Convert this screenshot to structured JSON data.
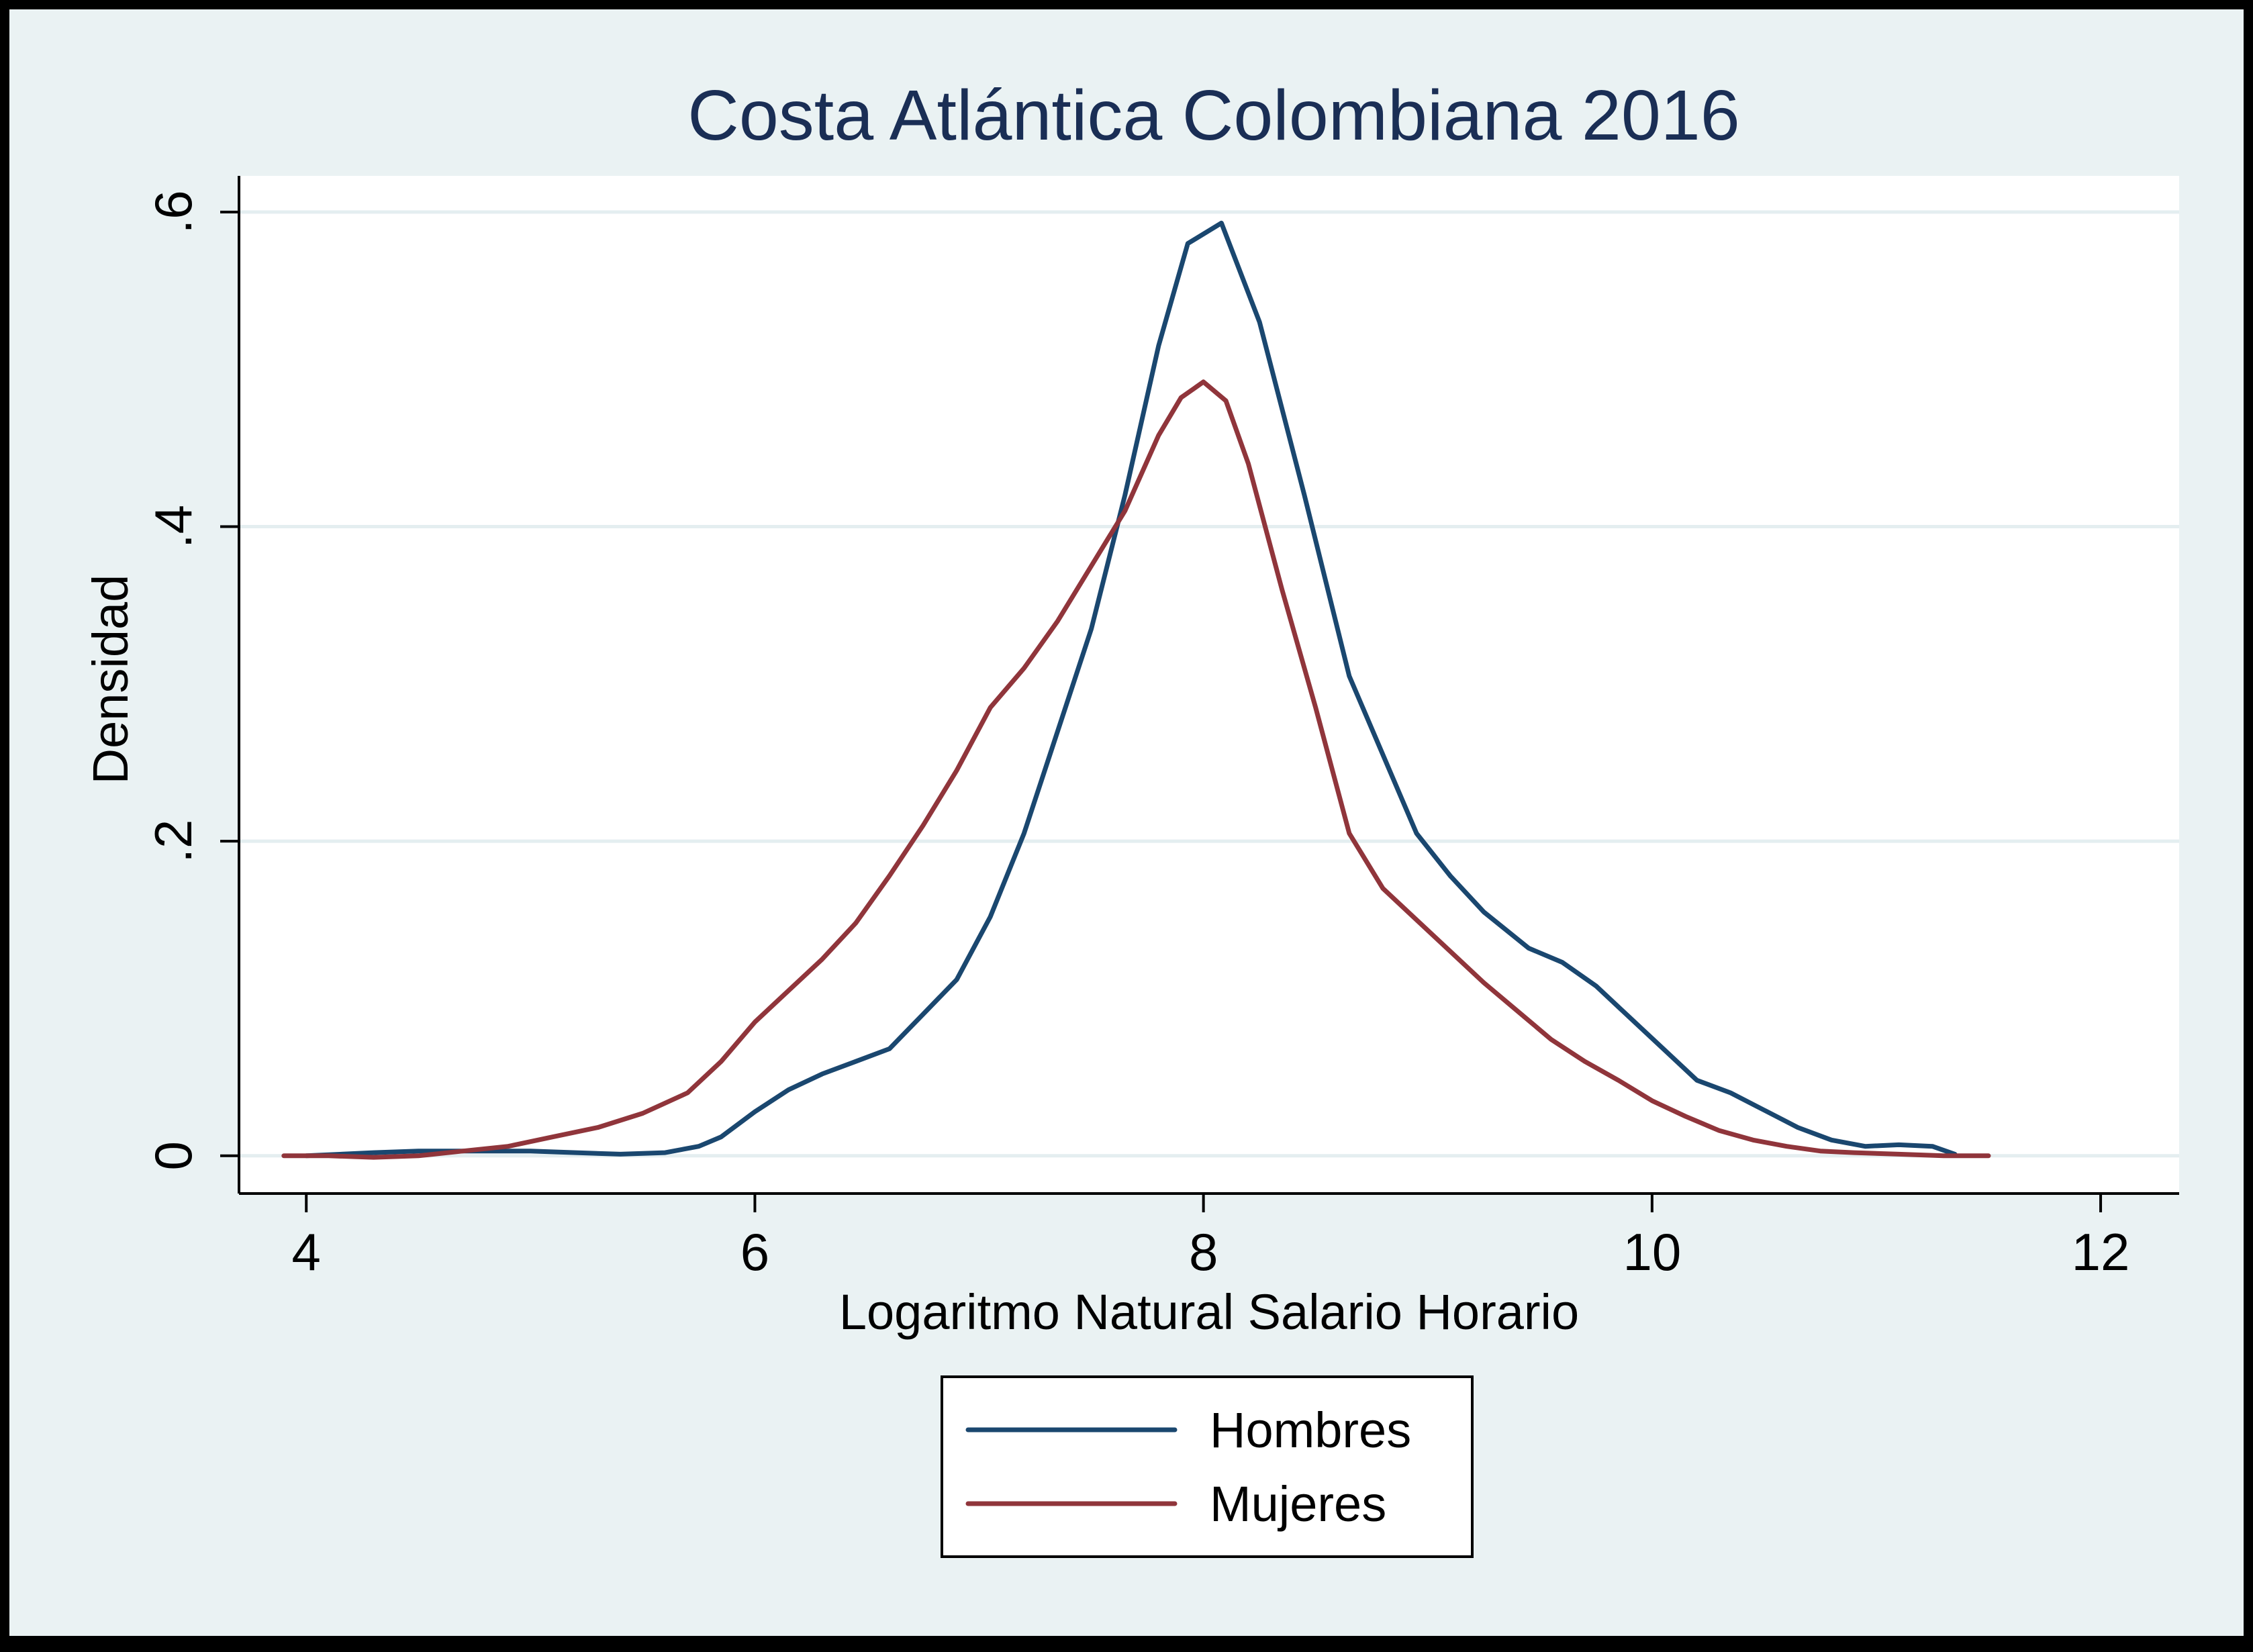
{
  "chart_data": {
    "type": "line",
    "title": "Costa Atlántica Colombiana 2016",
    "xlabel": "Logaritmo Natural Salario Horario",
    "ylabel": "Densidad",
    "xlim": [
      3.7,
      12.35
    ],
    "ylim": [
      -0.024,
      0.623
    ],
    "x_ticks": [
      4,
      6,
      8,
      10,
      12
    ],
    "x_tick_labels": [
      "4",
      "6",
      "8",
      "10",
      "12"
    ],
    "y_ticks": [
      0,
      0.2,
      0.4,
      0.6
    ],
    "y_tick_labels": [
      "0",
      ".2",
      ".4",
      ".6"
    ],
    "grid": true,
    "legend_position": "bottom",
    "colors": {
      "background": "#eaf2f3",
      "plot_background": "#ffffff",
      "grid": "#e4eef0",
      "frame": "#000000"
    },
    "series": [
      {
        "name": "Hombres",
        "color": "#1a476f",
        "x": [
          4.0,
          4.3,
          4.5,
          4.8,
          5.0,
          5.2,
          5.4,
          5.6,
          5.75,
          5.85,
          6.0,
          6.15,
          6.3,
          6.45,
          6.6,
          6.75,
          6.9,
          7.05,
          7.2,
          7.35,
          7.5,
          7.65,
          7.8,
          7.93,
          8.08,
          8.25,
          8.45,
          8.65,
          8.8,
          8.95,
          9.1,
          9.25,
          9.45,
          9.6,
          9.75,
          9.9,
          10.05,
          10.2,
          10.35,
          10.5,
          10.65,
          10.8,
          10.95,
          11.1,
          11.25,
          11.35
        ],
        "y": [
          0.0,
          0.002,
          0.003,
          0.003,
          0.003,
          0.002,
          0.001,
          0.002,
          0.006,
          0.012,
          0.028,
          0.042,
          0.052,
          0.06,
          0.068,
          0.09,
          0.112,
          0.152,
          0.205,
          0.27,
          0.335,
          0.42,
          0.515,
          0.58,
          0.593,
          0.53,
          0.42,
          0.305,
          0.255,
          0.205,
          0.178,
          0.155,
          0.132,
          0.123,
          0.108,
          0.088,
          0.068,
          0.048,
          0.04,
          0.029,
          0.018,
          0.01,
          0.006,
          0.007,
          0.006,
          0.001
        ]
      },
      {
        "name": "Mujeres",
        "color": "#90353b",
        "x": [
          3.9,
          4.1,
          4.3,
          4.5,
          4.7,
          4.9,
          5.1,
          5.3,
          5.5,
          5.7,
          5.85,
          6.0,
          6.15,
          6.3,
          6.45,
          6.6,
          6.75,
          6.9,
          7.05,
          7.2,
          7.35,
          7.5,
          7.65,
          7.8,
          7.9,
          8.0,
          8.1,
          8.2,
          8.35,
          8.5,
          8.65,
          8.8,
          8.95,
          9.1,
          9.25,
          9.4,
          9.55,
          9.7,
          9.85,
          10.0,
          10.15,
          10.3,
          10.45,
          10.6,
          10.75,
          10.9,
          11.1,
          11.3,
          11.5
        ],
        "y": [
          0.0,
          0.0,
          -0.001,
          0.0,
          0.003,
          0.006,
          0.012,
          0.018,
          0.027,
          0.04,
          0.06,
          0.085,
          0.105,
          0.125,
          0.148,
          0.178,
          0.21,
          0.245,
          0.285,
          0.31,
          0.34,
          0.375,
          0.41,
          0.458,
          0.482,
          0.492,
          0.48,
          0.44,
          0.36,
          0.285,
          0.205,
          0.17,
          0.15,
          0.13,
          0.11,
          0.092,
          0.074,
          0.06,
          0.048,
          0.035,
          0.025,
          0.016,
          0.01,
          0.006,
          0.003,
          0.002,
          0.001,
          0.0,
          0.0
        ]
      }
    ]
  }
}
